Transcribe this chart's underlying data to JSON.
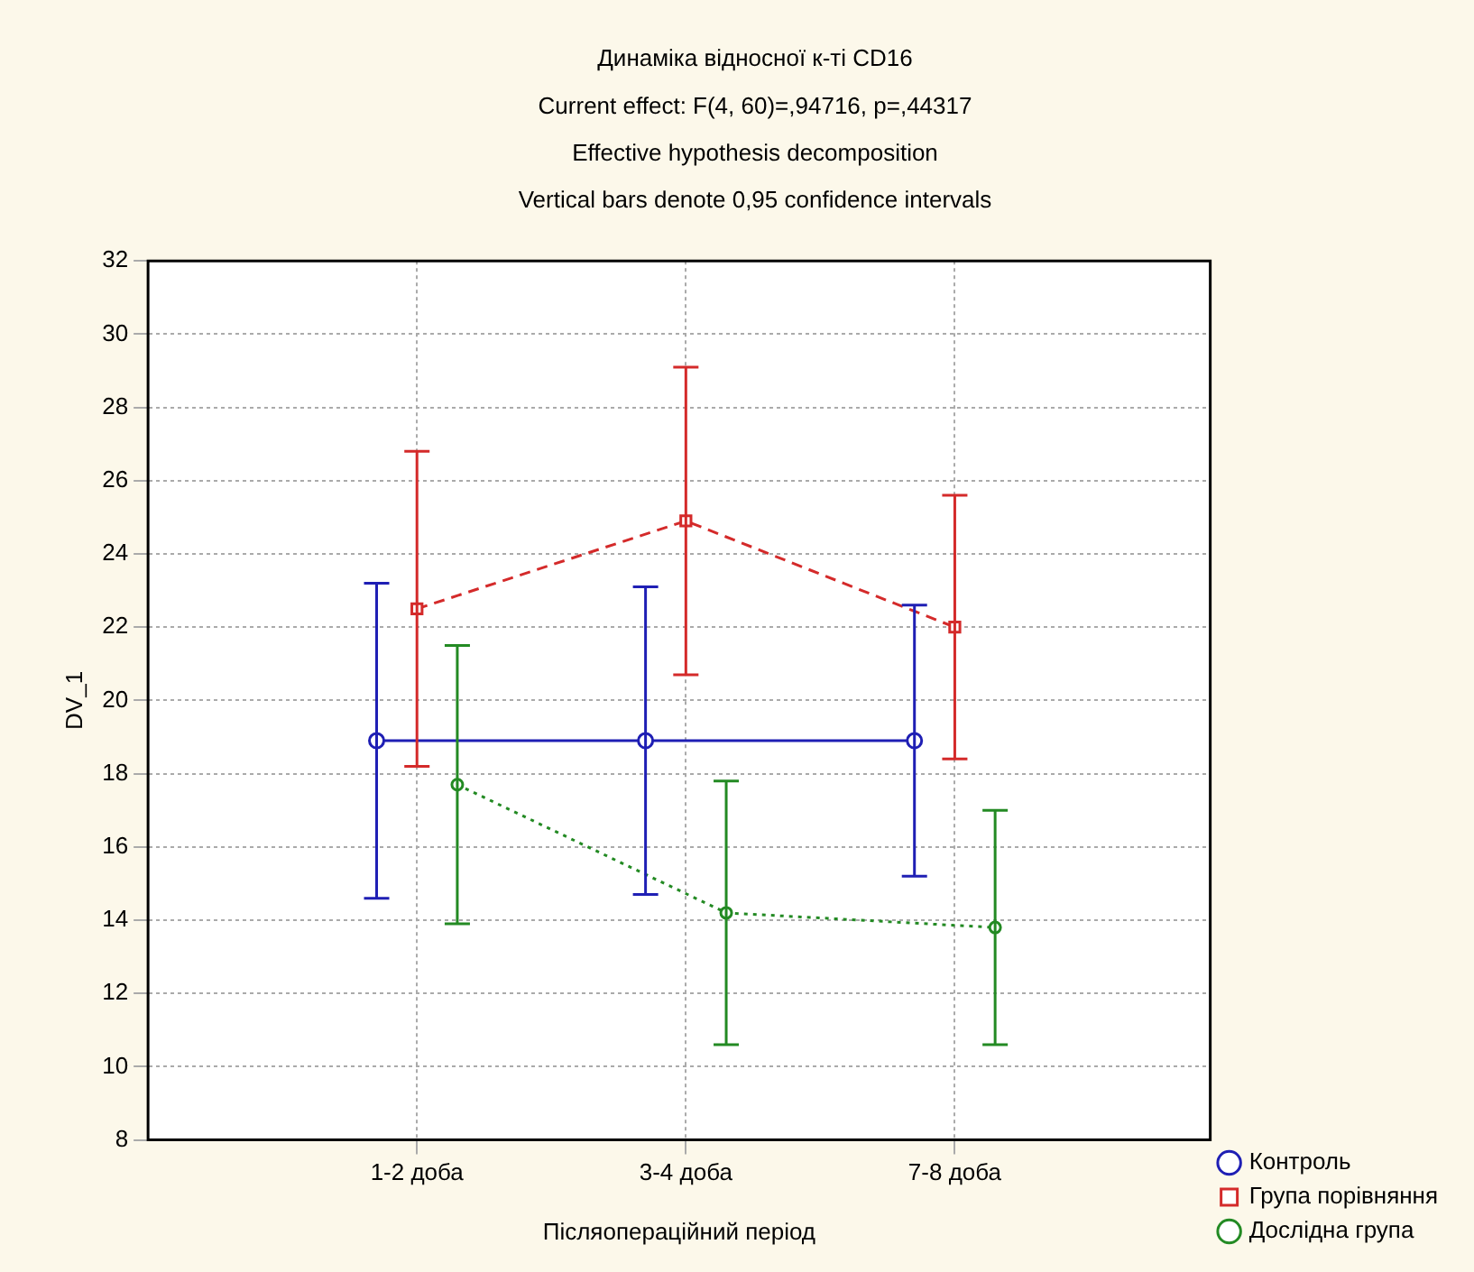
{
  "chart_data": {
    "type": "line",
    "title": "Динаміка відносної к-ті CD16",
    "subtitle": "Current effect: F(4, 60)=,94716, p=,44317\nEffective hypothesis decomposition\nVertical bars denote 0,95 confidence intervals",
    "xlabel": "Післяопераційний період",
    "ylabel": "DV_1",
    "categories": [
      "1-2 доба",
      "3-4 доба",
      "7-8 доба"
    ],
    "series": [
      {
        "name": "Контроль",
        "color": "#1f1fb4",
        "values": [
          18.9,
          18.9,
          18.9
        ],
        "errors": [
          4.3,
          4.2,
          3.7
        ],
        "marker": "circle",
        "line_style": "solid"
      },
      {
        "name": "Група порівняння",
        "color": "#d42a2a",
        "values": [
          22.5,
          24.9,
          22.0
        ],
        "errors": [
          4.3,
          4.2,
          3.6
        ],
        "marker": "square",
        "line_style": "dashed"
      },
      {
        "name": "Дослідна група",
        "color": "#238a23",
        "values": [
          17.7,
          14.2,
          13.8
        ],
        "errors": [
          3.8,
          3.6,
          3.2
        ],
        "marker": "circle",
        "line_style": "dotted"
      }
    ],
    "ylim": [
      8,
      32
    ],
    "yticks": [
      8,
      10,
      12,
      14,
      16,
      18,
      20,
      22,
      24,
      26,
      28,
      30,
      32
    ],
    "grid": true,
    "legend": "bottom right"
  }
}
